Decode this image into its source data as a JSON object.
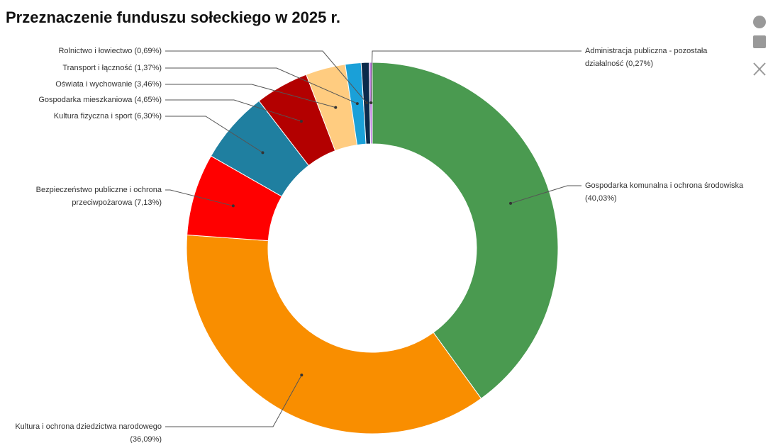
{
  "chart_data": {
    "type": "donut",
    "title": "Przeznaczenie funduszu sołeckiego w 2025 r.",
    "categories": [
      "Gospodarka komunalna i ochrona środowiska",
      "Kultura i ochrona dziedzictwa narodowego",
      "Bezpieczeństwo publiczne i ochrona przeciwpożarowa",
      "Kultura fizyczna i sport",
      "Gospodarka mieszkaniowa",
      "Oświata i wychowanie",
      "Transport i łączność",
      "Rolnictwo i łowiectwo",
      "Administracja publiczna - pozostała działalność"
    ],
    "values": [
      40.03,
      36.09,
      7.13,
      6.3,
      4.65,
      3.46,
      1.37,
      0.69,
      0.27
    ],
    "value_labels": [
      "(40,03%)",
      "(36,09%)",
      "(7,13%)",
      "(6,30%)",
      "(4,65%)",
      "(3,46%)",
      "(1,37%)",
      "(0,69%)",
      "(0,27%)"
    ],
    "colors": [
      "#4a9a50",
      "#f98e00",
      "#ff0000",
      "#1f7fa0",
      "#b30000",
      "#ffcc80",
      "#1aa0d8",
      "#0b2a4a",
      "#c080e0"
    ]
  }
}
